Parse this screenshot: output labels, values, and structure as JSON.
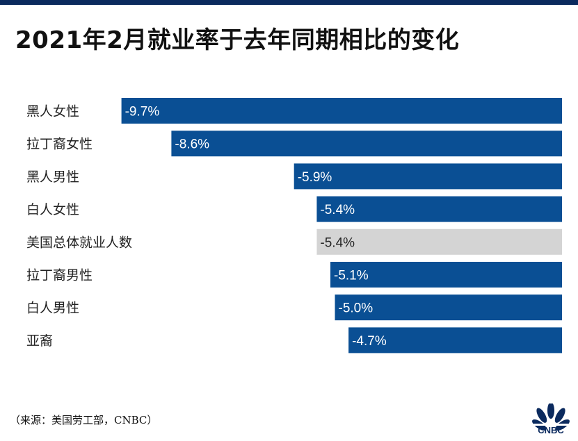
{
  "title": "2021年2月就业率于去年同期相比的变化",
  "source": "（来源：美国劳工部，CNBC）",
  "logo": {
    "icon": "cnbc-peacock-logo",
    "text": "CNBC"
  },
  "colors": {
    "bar": "#0a4f94",
    "highlight_bar": "#d4d4d4",
    "top_bar": "#0b2a5e"
  },
  "chart_data": {
    "type": "bar",
    "orientation": "horizontal",
    "categories": [
      "黑人女性",
      "拉丁裔女性",
      "黑人男性",
      "白人女性",
      "美国总体就业人数",
      "拉丁裔男性",
      "白人男性",
      "亚裔"
    ],
    "values": [
      -9.7,
      -8.6,
      -5.9,
      -5.4,
      -5.4,
      -5.1,
      -5.0,
      -4.7
    ],
    "value_labels": [
      "-9.7%",
      "-8.6%",
      "-5.9%",
      "-5.4%",
      "-5.4%",
      "-5.1%",
      "-5.0%",
      "-4.7%"
    ],
    "highlight": [
      4
    ],
    "xlim": [
      -10.1,
      0
    ],
    "grid": false,
    "legend": false
  }
}
